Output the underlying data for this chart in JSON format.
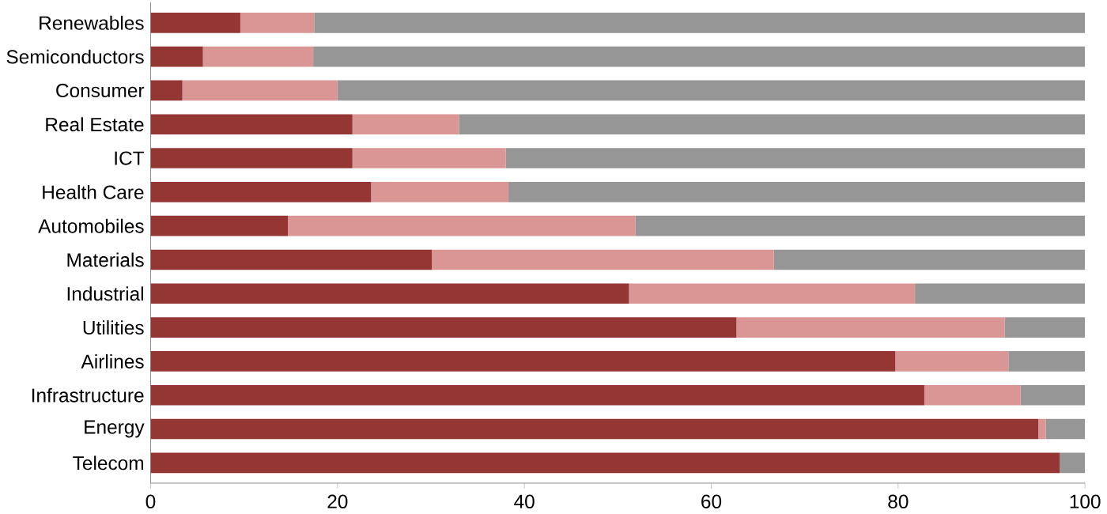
{
  "chart_data": {
    "type": "bar",
    "orientation": "horizontal",
    "stacked": true,
    "categories": [
      "Renewables",
      "Semiconductors",
      "Consumer",
      "Real Estate",
      "ICT",
      "Health Care",
      "Automobiles",
      "Materials",
      "Industrial",
      "Utilities",
      "Airlines",
      "Infrastructure",
      "Energy",
      "Telecom"
    ],
    "series": [
      {
        "color": "#943634",
        "values": [
          9.6,
          5.6,
          3.4,
          21.6,
          21.6,
          23.6,
          14.7,
          30.1,
          51.2,
          62.7,
          79.7,
          82.8,
          95.0,
          97.3
        ]
      },
      {
        "color": "#d99694",
        "values": [
          7.9,
          11.8,
          16.6,
          11.4,
          16.4,
          14.7,
          37.2,
          36.6,
          30.6,
          28.7,
          12.1,
          10.3,
          0.8,
          0
        ]
      },
      {
        "color": "#969696",
        "values": [
          82.5,
          82.6,
          80.0,
          67.0,
          62.0,
          61.7,
          48.1,
          33.3,
          18.2,
          8.6,
          8.2,
          6.9,
          4.2,
          2.7
        ]
      }
    ],
    "xlim": [
      0,
      100
    ],
    "xticks": [
      0,
      20,
      40,
      60,
      80,
      100
    ],
    "grid": false
  }
}
